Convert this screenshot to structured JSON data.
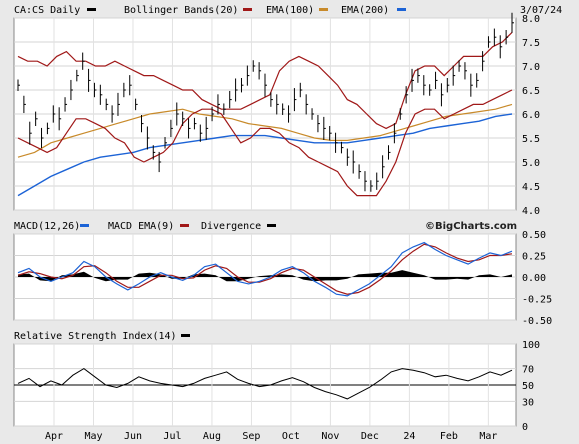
{
  "header": {
    "symbol_label": "CA:CS Daily",
    "bollinger_label": "Bollinger Bands(20)",
    "ema100_label": "EMA(100)",
    "ema200_label": "EMA(200)",
    "date_label": "3/07/24"
  },
  "macd_header": {
    "macd_label": "MACD(12,26)",
    "signal_label": "MACD EMA(9)",
    "divergence_label": "Divergence",
    "watermark": "©BigCharts.com"
  },
  "rsi_header": {
    "rsi_label": "Relative Strength Index(14)"
  },
  "colors": {
    "background": "#e9e9e9",
    "panel": "#ffffff",
    "price": "#000000",
    "bollinger": "#a01818",
    "ema100": "#c88a2a",
    "ema200": "#1c63d6",
    "macd": "#1c63d6",
    "signal": "#a01818",
    "divergence": "#000000",
    "rsi": "#000000"
  },
  "chart_data": [
    {
      "type": "line",
      "subtype": "ohlc-bars",
      "title": "CA:CS Daily",
      "x_tick_labels": [
        "Apr",
        "May",
        "Jun",
        "Jul",
        "Aug",
        "Sep",
        "Oct",
        "Nov",
        "Dec",
        "24",
        "Feb",
        "Mar"
      ],
      "y_tick_labels": [
        "8.0",
        "7.5",
        "7.0",
        "6.5",
        "6.0",
        "5.5",
        "5.0",
        "4.5",
        "4.0"
      ],
      "ylim": [
        4.0,
        8.0
      ],
      "grid": true,
      "legend": "top",
      "series": [
        {
          "name": "CA:CS Daily",
          "values": [
            6.6,
            6.2,
            5.6,
            5.9,
            5.5,
            5.7,
            6.0,
            5.9,
            6.2,
            6.5,
            6.8,
            7.1,
            6.7,
            6.5,
            6.4,
            6.2,
            6.0,
            6.2,
            6.5,
            6.6,
            6.2,
            5.8,
            5.5,
            5.2,
            5.0,
            5.4,
            5.7,
            6.0,
            5.9,
            5.7,
            5.8,
            5.6,
            5.7,
            6.0,
            6.2,
            6.1,
            6.3,
            6.5,
            6.6,
            6.8,
            7.0,
            6.9,
            6.6,
            6.3,
            6.2,
            6.1,
            6.0,
            6.3,
            6.5,
            6.2,
            6.0,
            5.8,
            5.7,
            5.6,
            5.4,
            5.3,
            5.1,
            5.0,
            4.8,
            4.6,
            4.5,
            4.6,
            4.9,
            5.2,
            5.6,
            6.0,
            6.4,
            6.7,
            6.8,
            6.6,
            6.5,
            6.7,
            6.4,
            6.6,
            6.8,
            7.0,
            6.9,
            6.6,
            6.7,
            7.1,
            7.5,
            7.6,
            7.4,
            7.6,
            7.9
          ]
        },
        {
          "name": "Bollinger Bands(20)",
          "values": [
            7.2,
            7.1,
            7.1,
            7.0,
            7.2,
            7.3,
            7.1,
            7.1,
            7.0,
            7.0,
            7.1,
            7.0,
            6.9,
            6.8,
            6.8,
            6.7,
            6.6,
            6.5,
            6.5,
            6.3,
            6.2,
            6.1,
            6.1,
            6.1,
            6.2,
            6.3,
            6.4,
            6.9,
            7.1,
            7.2,
            7.1,
            7.0,
            6.8,
            6.6,
            6.3,
            6.2,
            6.0,
            5.8,
            5.7,
            5.8,
            6.4,
            6.9,
            7.0,
            7.0,
            6.8,
            7.0,
            7.2,
            7.2,
            7.2,
            7.4,
            7.5,
            7.7
          ]
        },
        {
          "name": "Bollinger Bands(20)",
          "values": [
            5.5,
            5.4,
            5.3,
            5.2,
            5.3,
            5.6,
            5.9,
            5.9,
            5.8,
            5.7,
            5.5,
            5.4,
            5.1,
            5.0,
            5.1,
            5.2,
            5.4,
            5.8,
            6.0,
            6.1,
            6.1,
            6.0,
            5.7,
            5.4,
            5.5,
            5.7,
            5.7,
            5.6,
            5.4,
            5.3,
            5.1,
            5.0,
            4.9,
            4.8,
            4.5,
            4.3,
            4.3,
            4.3,
            4.6,
            5.0,
            5.6,
            6.0,
            6.1,
            6.1,
            5.9,
            6.0,
            6.1,
            6.2,
            6.2,
            6.3,
            6.4,
            6.5
          ]
        },
        {
          "name": "EMA(100)",
          "values": [
            5.1,
            5.2,
            5.4,
            5.5,
            5.6,
            5.7,
            5.8,
            5.9,
            6.0,
            6.05,
            6.1,
            6.0,
            5.95,
            5.9,
            5.8,
            5.75,
            5.7,
            5.6,
            5.5,
            5.45,
            5.45,
            5.5,
            5.55,
            5.65,
            5.75,
            5.85,
            5.95,
            6.0,
            6.05,
            6.1,
            6.2
          ]
        },
        {
          "name": "EMA(200)",
          "values": [
            4.3,
            4.5,
            4.7,
            4.85,
            5.0,
            5.1,
            5.15,
            5.2,
            5.3,
            5.35,
            5.4,
            5.45,
            5.5,
            5.55,
            5.55,
            5.55,
            5.5,
            5.45,
            5.4,
            5.4,
            5.4,
            5.45,
            5.5,
            5.55,
            5.6,
            5.7,
            5.75,
            5.8,
            5.85,
            5.95,
            6.0
          ]
        }
      ]
    },
    {
      "type": "line",
      "title": "MACD(12,26)",
      "y_tick_labels": [
        "0.50",
        "0.25",
        "0.00",
        "-0.25",
        "-0.50"
      ],
      "ylim": [
        -0.5,
        0.5
      ],
      "grid": true,
      "series": [
        {
          "name": "MACD(12,26)",
          "values": [
            0.05,
            0.1,
            0.0,
            -0.05,
            0.0,
            0.05,
            0.18,
            0.12,
            0.0,
            -0.08,
            -0.15,
            -0.08,
            0.0,
            0.05,
            0.0,
            -0.04,
            0.02,
            0.12,
            0.15,
            0.05,
            -0.05,
            -0.08,
            -0.05,
            0.0,
            0.08,
            0.12,
            0.05,
            -0.05,
            -0.12,
            -0.2,
            -0.22,
            -0.15,
            -0.08,
            0.02,
            0.12,
            0.28,
            0.35,
            0.4,
            0.32,
            0.25,
            0.2,
            0.15,
            0.22,
            0.28,
            0.25,
            0.3
          ]
        },
        {
          "name": "MACD EMA(9)",
          "values": [
            0.02,
            0.06,
            0.04,
            0.0,
            -0.02,
            0.02,
            0.12,
            0.13,
            0.05,
            -0.05,
            -0.12,
            -0.12,
            -0.05,
            0.02,
            0.02,
            -0.02,
            -0.01,
            0.08,
            0.13,
            0.1,
            0.0,
            -0.06,
            -0.06,
            -0.02,
            0.05,
            0.1,
            0.08,
            0.0,
            -0.08,
            -0.16,
            -0.2,
            -0.18,
            -0.12,
            -0.03,
            0.07,
            0.2,
            0.3,
            0.38,
            0.35,
            0.28,
            0.22,
            0.18,
            0.2,
            0.25,
            0.25,
            0.27
          ]
        },
        {
          "name": "Divergence",
          "values": [
            0.03,
            0.04,
            -0.04,
            -0.05,
            0.02,
            0.03,
            0.06,
            -0.01,
            -0.05,
            -0.03,
            -0.03,
            0.04,
            0.05,
            0.03,
            -0.02,
            -0.02,
            0.03,
            0.04,
            0.02,
            -0.05,
            -0.05,
            -0.02,
            0.01,
            0.02,
            0.03,
            0.02,
            -0.03,
            -0.05,
            -0.04,
            -0.04,
            -0.02,
            0.03,
            0.04,
            0.05,
            0.05,
            0.08,
            0.05,
            0.02,
            -0.03,
            -0.03,
            -0.02,
            -0.03,
            0.02,
            0.03,
            0.0,
            0.03
          ]
        }
      ]
    },
    {
      "type": "line",
      "title": "Relative Strength Index(14)",
      "y_tick_labels": [
        "100",
        "70",
        "50",
        "30",
        "0"
      ],
      "ylim": [
        0,
        100
      ],
      "grid": true,
      "series": [
        {
          "name": "Relative Strength Index(14)",
          "values": [
            52,
            58,
            48,
            55,
            50,
            62,
            70,
            60,
            50,
            47,
            52,
            60,
            55,
            52,
            50,
            48,
            52,
            58,
            62,
            66,
            57,
            52,
            48,
            50,
            55,
            59,
            54,
            47,
            42,
            38,
            33,
            40,
            47,
            56,
            66,
            70,
            68,
            65,
            60,
            62,
            58,
            55,
            60,
            66,
            62,
            68
          ]
        }
      ]
    }
  ]
}
